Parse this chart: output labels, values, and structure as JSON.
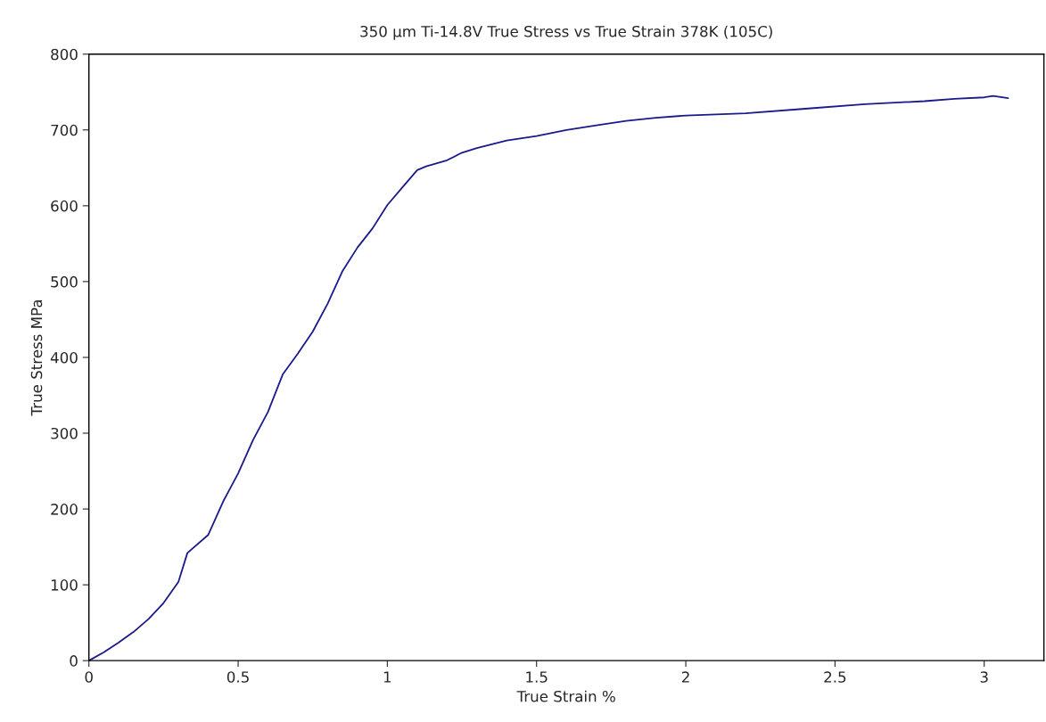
{
  "chart_data": {
    "type": "line",
    "title": "350 μm Ti-14.8V True Stress vs True Strain 378K (105C)",
    "xlabel": "True Strain %",
    "ylabel": "True Stress MPa",
    "xlim": [
      0,
      3.2
    ],
    "xticks": [
      0,
      0.5,
      1,
      1.5,
      2,
      2.5,
      3
    ],
    "ylim": [
      0,
      800
    ],
    "yticks": [
      0,
      100,
      200,
      300,
      400,
      500,
      600,
      700,
      800
    ],
    "grid": false,
    "marker": "none",
    "line_style": "solid",
    "series": [
      {
        "color": "#1a1a8c",
        "x": [
          0,
          0.05,
          0.1,
          0.15,
          0.2,
          0.25,
          0.3,
          0.33,
          0.4,
          0.45,
          0.5,
          0.55,
          0.6,
          0.65,
          0.7,
          0.75,
          0.8,
          0.85,
          0.9,
          0.95,
          1.0,
          1.05,
          1.1,
          1.13,
          1.2,
          1.25,
          1.3,
          1.4,
          1.5,
          1.6,
          1.7,
          1.8,
          1.9,
          2.0,
          2.2,
          2.4,
          2.6,
          2.8,
          2.9,
          3.0,
          3.03,
          3.08
        ],
        "values": [
          0,
          11,
          24,
          38,
          55,
          76,
          104,
          142,
          166,
          210,
          247,
          291,
          328,
          378,
          405,
          434,
          471,
          514,
          545,
          570,
          601,
          624,
          647,
          652,
          660,
          670,
          676,
          686,
          692,
          700,
          706,
          712,
          716,
          719,
          722,
          728,
          734,
          738,
          741,
          743,
          745,
          742
        ]
      }
    ]
  }
}
